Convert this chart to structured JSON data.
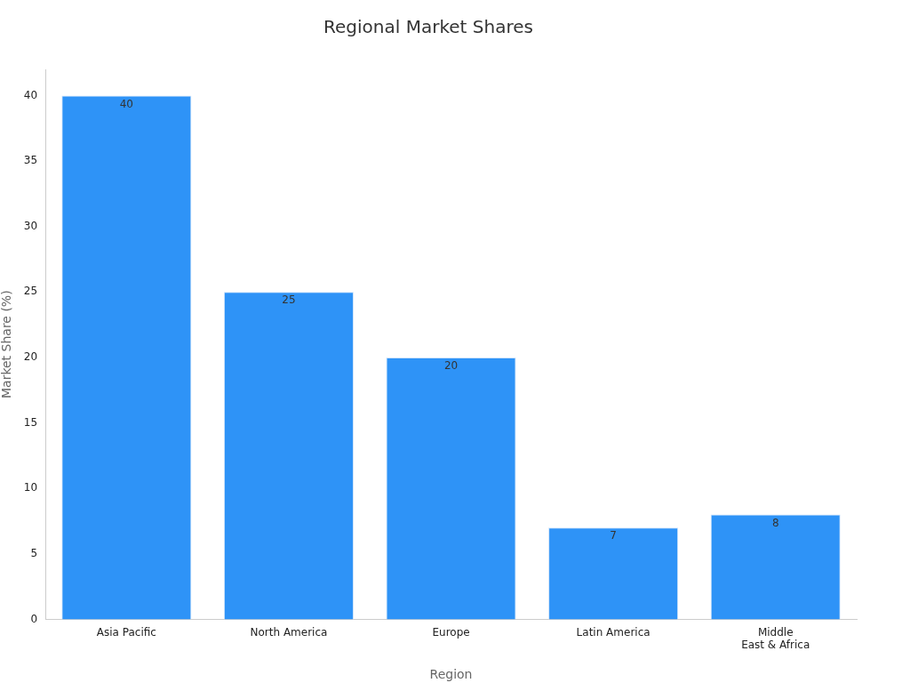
{
  "chart_data": {
    "type": "bar",
    "title": "Regional Market Shares",
    "xlabel": "Region",
    "ylabel": "Market Share (%)",
    "categories": [
      "Asia Pacific",
      "North America",
      "Europe",
      "Latin America",
      "Middle East & Africa"
    ],
    "values": [
      40,
      25,
      20,
      7,
      8
    ],
    "color": "#2e93f7",
    "ylim": [
      0,
      42
    ],
    "yticks": [
      0,
      5,
      10,
      15,
      20,
      25,
      30,
      35,
      40
    ],
    "grid": false,
    "legend": false,
    "data_labels": true
  }
}
